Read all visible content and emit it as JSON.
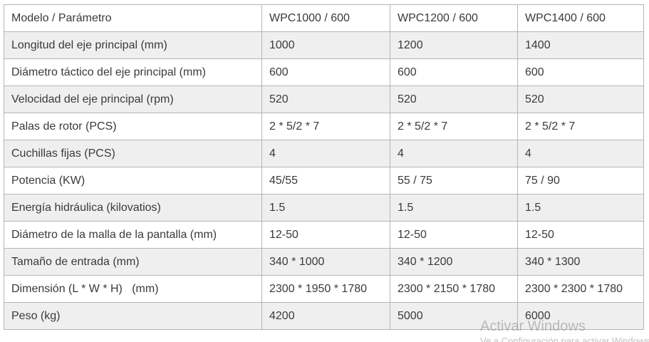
{
  "table": {
    "rows": [
      [
        "Modelo / Parámetro",
        "WPC1000 / 600",
        "WPC1200 / 600",
        "WPC1400 / 600"
      ],
      [
        "Longitud del eje principal (mm)",
        "1000",
        "1200",
        "1400"
      ],
      [
        "Diámetro táctico del eje principal (mm)",
        "600",
        "600",
        "600"
      ],
      [
        "Velocidad del eje principal (rpm)",
        "520",
        "520",
        "520"
      ],
      [
        "Palas de rotor (PCS)",
        "2 * 5/2 * 7",
        "2 * 5/2 * 7",
        "2 * 5/2 * 7"
      ],
      [
        "Cuchillas fijas (PCS)",
        "4",
        "4",
        "4"
      ],
      [
        "Potencia (KW)",
        "45/55",
        "55 / 75",
        "75 / 90"
      ],
      [
        "Energía hidráulica (kilovatios)",
        "1.5",
        "1.5",
        "1.5"
      ],
      [
        "Diámetro de la malla de la pantalla (mm)",
        "12-50",
        "12-50",
        "12-50"
      ],
      [
        "Tamaño de entrada (mm)",
        "340 * 1000",
        "340 * 1200",
        "340 * 1300"
      ],
      [
        "Dimensión (L * W * H)   (mm)",
        "2300 * 1950 * 1780",
        "2300 * 2150 * 1780",
        "2300 * 2300 * 1780"
      ],
      [
        "Peso (kg)",
        "4200",
        "5000",
        "6000"
      ]
    ]
  },
  "watermark": {
    "title": "Activar Windows",
    "subtitle": "Ve a Configuración para activar Windows."
  }
}
